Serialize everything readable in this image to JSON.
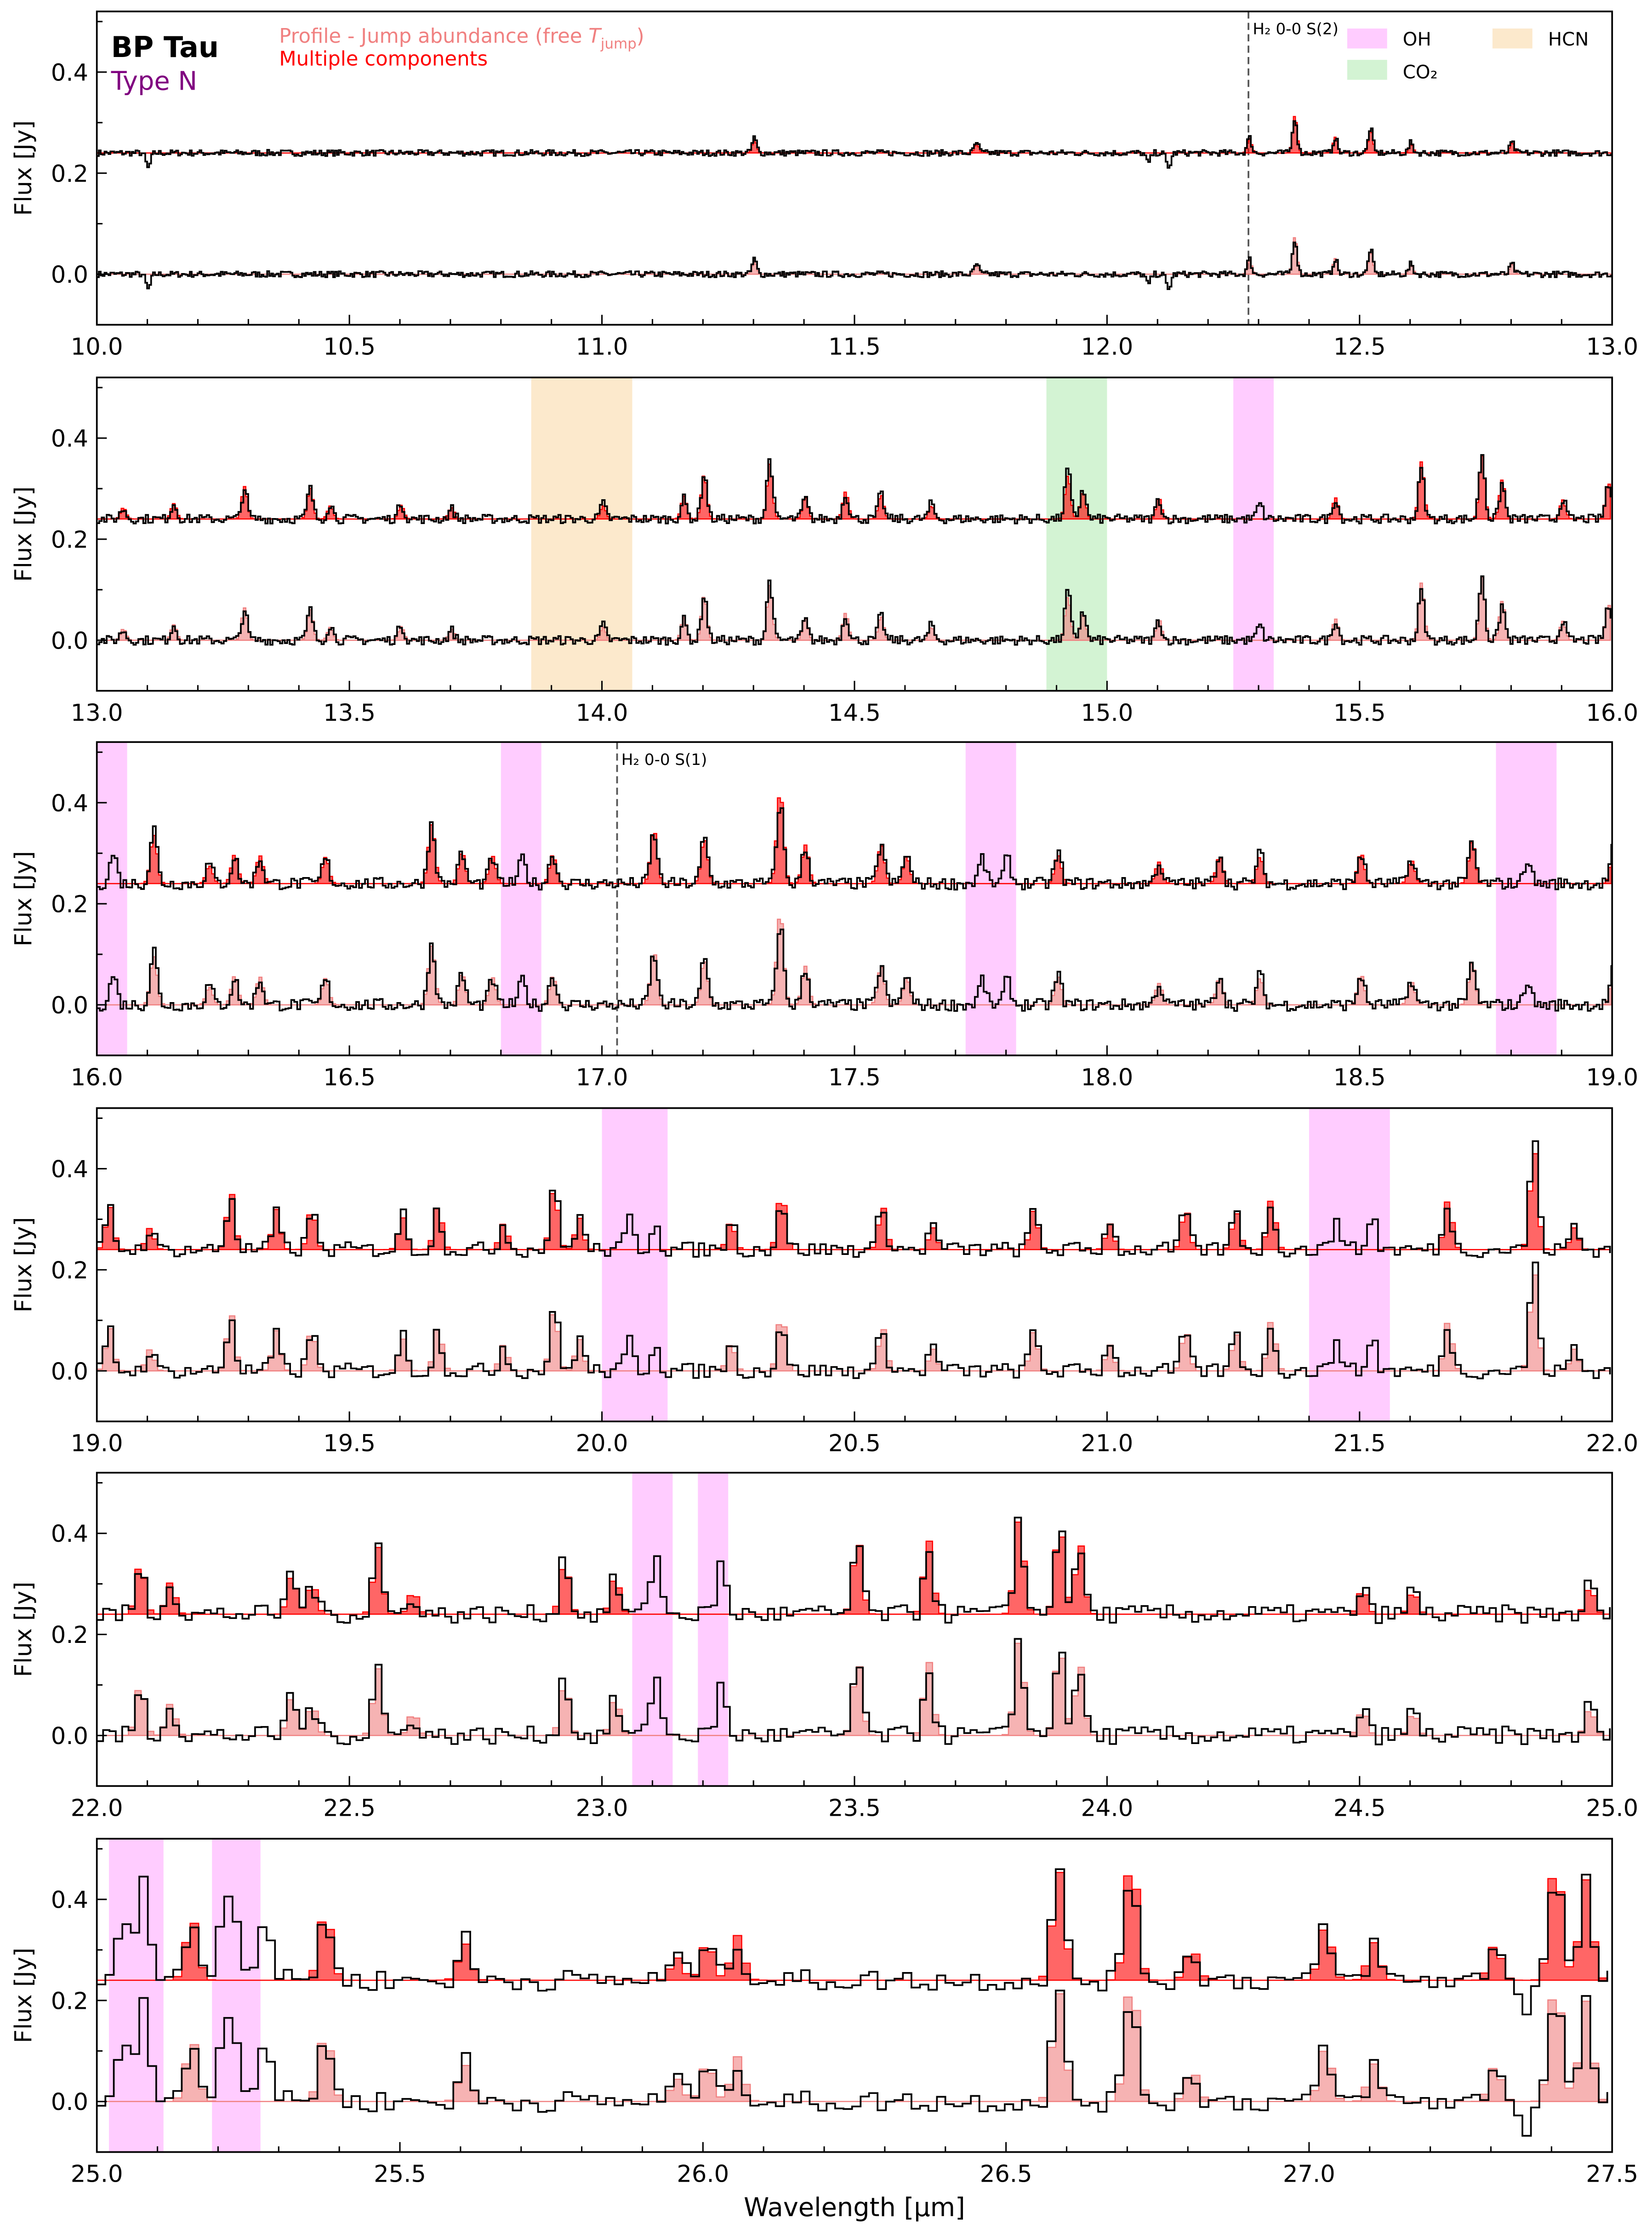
{
  "chart_data": {
    "type": "line",
    "title": "BP Tau",
    "subtitle": "Type N",
    "xlabel": "Wavelength [μm]",
    "ylabel": "Flux [Jy]",
    "ylim": [
      -0.1,
      0.52
    ],
    "yticks": [
      "0.0",
      "0.2",
      "0.4"
    ],
    "grid": false,
    "legend_text": {
      "model_profile_prefix": "Profile - Jump abundance (free ",
      "model_profile_T": "T",
      "model_profile_sub": "jump",
      "model_profile_suffix": ")",
      "model_components": "Multiple components"
    },
    "legend_placement": "top-right",
    "colors": {
      "observed": "#000000",
      "model_profile": "#f08080",
      "model_components": "#ff0000",
      "OH": "#ff80ff",
      "CO2": "#90e090",
      "HCN": "#f8c880",
      "type_label": "#800080"
    },
    "offsets": {
      "upper_spectrum": 0.24,
      "lower_spectrum": 0.0
    },
    "species_legend": [
      {
        "name": "OH",
        "color": "#ff80ff"
      },
      {
        "name": "HCN",
        "color": "#f8c880"
      },
      {
        "name": "CO₂",
        "color": "#90e090"
      }
    ],
    "h2_lines": [
      {
        "label": "H₂ 0-0 S(2)",
        "wavelength": 12.28
      },
      {
        "label": "H₂ 0-0 S(1)",
        "wavelength": 17.03
      }
    ],
    "panels": [
      {
        "xlim": [
          10.0,
          13.0
        ],
        "xticks": [
          "10.0",
          "10.5",
          "11.0",
          "11.5",
          "12.0",
          "12.5",
          "13.0"
        ],
        "shaded": [],
        "peaks": [
          [
            10.1,
            -0.03
          ],
          [
            11.3,
            0.03
          ],
          [
            11.74,
            0.02
          ],
          [
            12.08,
            -0.02
          ],
          [
            12.12,
            -0.03
          ],
          [
            12.28,
            0.03
          ],
          [
            12.37,
            0.07
          ],
          [
            12.45,
            0.03
          ],
          [
            12.52,
            0.05
          ],
          [
            12.6,
            0.02
          ],
          [
            12.8,
            0.02
          ]
        ]
      },
      {
        "xlim": [
          13.0,
          16.0
        ],
        "xticks": [
          "13.0",
          "13.5",
          "14.0",
          "14.5",
          "15.0",
          "15.5",
          "16.0"
        ],
        "shaded": [
          {
            "species": "HCN",
            "range": [
              13.86,
              14.06
            ]
          },
          {
            "species": "CO2",
            "range": [
              14.88,
              15.0
            ]
          },
          {
            "species": "OH",
            "range": [
              15.25,
              15.33
            ]
          }
        ],
        "peaks": [
          [
            13.05,
            0.02
          ],
          [
            13.15,
            0.03
          ],
          [
            13.29,
            0.06
          ],
          [
            13.42,
            0.06
          ],
          [
            13.46,
            0.03
          ],
          [
            13.6,
            0.03
          ],
          [
            13.7,
            0.02
          ],
          [
            14.0,
            0.03
          ],
          [
            14.16,
            0.04
          ],
          [
            14.2,
            0.09
          ],
          [
            14.33,
            0.12
          ],
          [
            14.4,
            0.04
          ],
          [
            14.48,
            0.05
          ],
          [
            14.55,
            0.05
          ],
          [
            14.65,
            0.03
          ],
          [
            14.92,
            0.1
          ],
          [
            14.95,
            0.06
          ],
          [
            15.1,
            0.04
          ],
          [
            15.3,
            0.03
          ],
          [
            15.45,
            0.04
          ],
          [
            15.62,
            0.1
          ],
          [
            15.74,
            0.13
          ],
          [
            15.78,
            0.07
          ],
          [
            15.9,
            0.04
          ],
          [
            15.99,
            0.07
          ]
        ]
      },
      {
        "xlim": [
          16.0,
          19.0
        ],
        "xticks": [
          "16.0",
          "16.5",
          "17.0",
          "17.5",
          "18.0",
          "18.5",
          "19.0"
        ],
        "shaded": [
          {
            "species": "OH",
            "range": [
              16.0,
              16.06
            ]
          },
          {
            "species": "OH",
            "range": [
              16.8,
              16.88
            ]
          },
          {
            "species": "OH",
            "range": [
              17.72,
              17.82
            ]
          },
          {
            "species": "OH",
            "range": [
              18.77,
              18.89
            ]
          }
        ],
        "peaks": [
          [
            16.03,
            0.06
          ],
          [
            16.11,
            0.11
          ],
          [
            16.22,
            0.04
          ],
          [
            16.27,
            0.05
          ],
          [
            16.32,
            0.05
          ],
          [
            16.45,
            0.05
          ],
          [
            16.66,
            0.12
          ],
          [
            16.72,
            0.06
          ],
          [
            16.78,
            0.05
          ],
          [
            16.84,
            0.05
          ],
          [
            16.9,
            0.06
          ],
          [
            17.1,
            0.1
          ],
          [
            17.2,
            0.09
          ],
          [
            17.35,
            0.16
          ],
          [
            17.4,
            0.07
          ],
          [
            17.55,
            0.08
          ],
          [
            17.6,
            0.06
          ],
          [
            17.75,
            0.05
          ],
          [
            17.8,
            0.05
          ],
          [
            17.9,
            0.06
          ],
          [
            18.1,
            0.04
          ],
          [
            18.22,
            0.06
          ],
          [
            18.3,
            0.06
          ],
          [
            18.5,
            0.06
          ],
          [
            18.6,
            0.05
          ],
          [
            18.72,
            0.08
          ],
          [
            18.83,
            0.05
          ],
          [
            19.0,
            0.07
          ]
        ]
      },
      {
        "xlim": [
          19.0,
          22.0
        ],
        "xticks": [
          "19.0",
          "19.5",
          "20.0",
          "20.5",
          "21.0",
          "21.5",
          "22.0"
        ],
        "shaded": [
          {
            "species": "OH",
            "range": [
              20.0,
              20.13
            ]
          },
          {
            "species": "OH",
            "range": [
              21.4,
              21.56
            ]
          }
        ],
        "peaks": [
          [
            19.02,
            0.08
          ],
          [
            19.1,
            0.04
          ],
          [
            19.26,
            0.11
          ],
          [
            19.35,
            0.07
          ],
          [
            19.42,
            0.08
          ],
          [
            19.6,
            0.07
          ],
          [
            19.67,
            0.08
          ],
          [
            19.8,
            0.05
          ],
          [
            19.9,
            0.13
          ],
          [
            19.95,
            0.07
          ],
          [
            20.05,
            0.06
          ],
          [
            20.1,
            0.06
          ],
          [
            20.25,
            0.06
          ],
          [
            20.35,
            0.1
          ],
          [
            20.55,
            0.09
          ],
          [
            20.65,
            0.05
          ],
          [
            20.85,
            0.08
          ],
          [
            21.0,
            0.06
          ],
          [
            21.15,
            0.08
          ],
          [
            21.25,
            0.08
          ],
          [
            21.32,
            0.09
          ],
          [
            21.45,
            0.07
          ],
          [
            21.52,
            0.07
          ],
          [
            21.67,
            0.09
          ],
          [
            21.84,
            0.23
          ],
          [
            21.92,
            0.05
          ]
        ]
      },
      {
        "xlim": [
          22.0,
          25.0
        ],
        "xticks": [
          "22.0",
          "22.5",
          "23.0",
          "23.5",
          "24.0",
          "24.5",
          "25.0"
        ],
        "shaded": [
          {
            "species": "OH",
            "range": [
              23.06,
              23.14
            ]
          },
          {
            "species": "OH",
            "range": [
              23.19,
              23.25
            ]
          }
        ],
        "peaks": [
          [
            22.08,
            0.09
          ],
          [
            22.14,
            0.07
          ],
          [
            22.38,
            0.09
          ],
          [
            22.42,
            0.06
          ],
          [
            22.55,
            0.14
          ],
          [
            22.62,
            0.04
          ],
          [
            22.92,
            0.12
          ],
          [
            23.02,
            0.07
          ],
          [
            23.1,
            0.13
          ],
          [
            23.23,
            0.1
          ],
          [
            23.5,
            0.15
          ],
          [
            23.64,
            0.14
          ],
          [
            23.82,
            0.2
          ],
          [
            23.9,
            0.19
          ],
          [
            23.94,
            0.13
          ],
          [
            24.5,
            0.05
          ],
          [
            24.6,
            0.05
          ],
          [
            24.95,
            0.06
          ]
        ]
      },
      {
        "xlim": [
          25.0,
          27.5
        ],
        "xticks": [
          "25.0",
          "25.5",
          "26.0",
          "26.5",
          "27.0",
          "27.5"
        ],
        "shaded": [
          {
            "species": "OH",
            "range": [
              25.02,
              25.11
            ]
          },
          {
            "species": "OH",
            "range": [
              25.19,
              25.27
            ]
          }
        ],
        "peaks": [
          [
            25.04,
            0.13
          ],
          [
            25.07,
            0.2
          ],
          [
            25.15,
            0.12
          ],
          [
            25.2,
            0.12
          ],
          [
            25.22,
            0.14
          ],
          [
            25.27,
            0.13
          ],
          [
            25.37,
            0.13
          ],
          [
            25.6,
            0.08
          ],
          [
            25.95,
            0.05
          ],
          [
            26.0,
            0.09
          ],
          [
            26.05,
            0.08
          ],
          [
            26.58,
            0.22
          ],
          [
            26.7,
            0.22
          ],
          [
            26.8,
            0.06
          ],
          [
            27.02,
            0.1
          ],
          [
            27.1,
            0.07
          ],
          [
            27.3,
            0.08
          ],
          [
            27.4,
            0.22
          ],
          [
            27.45,
            0.19
          ],
          [
            27.35,
            -0.05
          ]
        ]
      }
    ]
  }
}
